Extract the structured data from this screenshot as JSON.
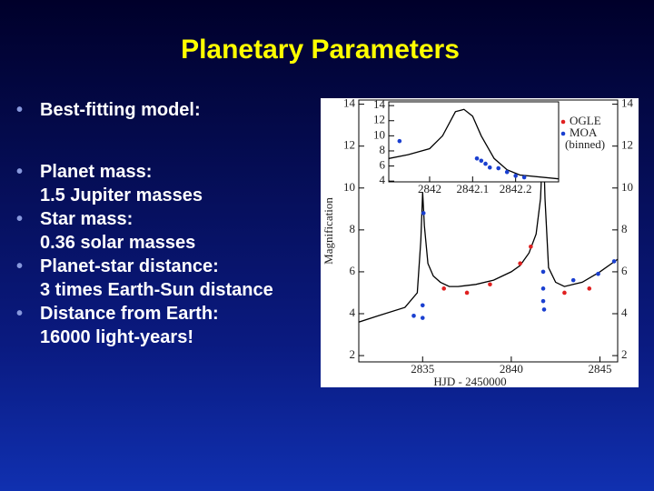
{
  "slide": {
    "title": "Planetary Parameters",
    "bullets": [
      [
        "Best-fitting  model:"
      ],
      [
        "Planet mass:",
        "1.5 Jupiter masses"
      ],
      [
        "Star mass:",
        "0.36 solar masses"
      ],
      [
        "Planet-star distance:",
        "3 times Earth-Sun distance"
      ],
      [
        "Distance from Earth:",
        "16000 light-years!"
      ]
    ]
  },
  "chart_data": [
    {
      "type": "line",
      "ylabel": "Magnification",
      "xlabel": "HJD - 2450000",
      "xlim": [
        2831.4,
        2846.0
      ],
      "ylim": [
        1.7,
        14.2
      ],
      "xticks": [
        2835,
        2840,
        2845
      ],
      "yticks": [
        2,
        4,
        6,
        8,
        10,
        12,
        14
      ],
      "legend_note": "(binned)",
      "series": [
        {
          "color": "#000000",
          "mode": "line",
          "x": [
            2831.4,
            2832.5,
            2834,
            2834.7,
            2834.9,
            2835.0,
            2835.1,
            2835.3,
            2835.6,
            2836,
            2836.5,
            2837,
            2838,
            2839,
            2840,
            2840.5,
            2841,
            2841.4,
            2841.65,
            2841.8,
            2841.9,
            2842.1,
            2842.5,
            2843,
            2844,
            2845,
            2846
          ],
          "values": [
            3.6,
            3.9,
            4.3,
            5.0,
            7.5,
            9.8,
            8.2,
            6.4,
            5.8,
            5.5,
            5.3,
            5.3,
            5.4,
            5.6,
            6.0,
            6.3,
            6.9,
            7.8,
            9.5,
            12.5,
            9.5,
            6.2,
            5.5,
            5.3,
            5.5,
            6.0,
            6.6
          ]
        },
        {
          "name": "OGLE",
          "color": "#e02020",
          "mode": "markers",
          "x": [
            2836.2,
            2837.5,
            2838.8,
            2840.5,
            2841.1,
            2843.0,
            2844.4
          ],
          "values": [
            5.2,
            5.0,
            5.4,
            6.4,
            7.2,
            5.0,
            5.2
          ]
        },
        {
          "name": "MOA",
          "color": "#1a3fd0",
          "mode": "markers",
          "x": [
            2834.5,
            2835.0,
            2835.0,
            2835.05,
            2841.8,
            2841.8,
            2841.8,
            2841.85,
            2843.5,
            2844.9,
            2845.8
          ],
          "values": [
            3.9,
            3.8,
            4.4,
            8.8,
            6.0,
            5.2,
            4.6,
            4.2,
            5.6,
            5.9,
            6.5
          ]
        }
      ]
    },
    {
      "type": "line",
      "xlim": [
        2841.905,
        2842.3
      ],
      "ylim": [
        3.9,
        14.5
      ],
      "xticks": [
        2842,
        2842.1,
        2842.2
      ],
      "yticks": [
        4,
        6,
        8,
        10,
        12,
        14
      ],
      "series": [
        {
          "color": "#000000",
          "mode": "line",
          "x": [
            2841.905,
            2841.95,
            2842,
            2842.03,
            2842.06,
            2842.08,
            2842.1,
            2842.12,
            2842.15,
            2842.18,
            2842.21,
            2842.3
          ],
          "values": [
            7.0,
            7.5,
            8.3,
            10.0,
            13.2,
            13.5,
            12.6,
            10.0,
            7.0,
            5.5,
            4.8,
            4.3
          ]
        },
        {
          "color": "#1a3fd0",
          "mode": "markers",
          "x": [
            2841.93,
            2842.11,
            2842.12,
            2842.13,
            2842.14,
            2842.16,
            2842.18,
            2842.2,
            2842.22
          ],
          "values": [
            9.3,
            7.0,
            6.7,
            6.3,
            5.8,
            5.7,
            5.2,
            4.7,
            4.5
          ]
        }
      ]
    }
  ]
}
